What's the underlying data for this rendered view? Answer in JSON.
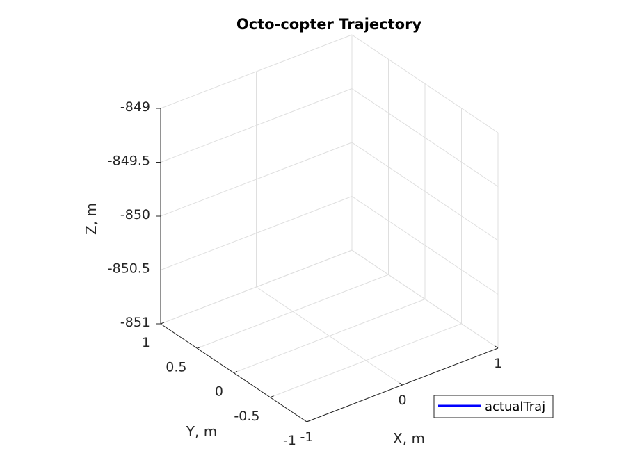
{
  "chart_data": {
    "type": "line",
    "projection": "3d",
    "title": "Octo-copter Trajectory",
    "xlabel": "X, m",
    "ylabel": "Y, m",
    "zlabel": "Z, m",
    "xlim": [
      -1,
      1
    ],
    "ylim": [
      -1,
      1
    ],
    "zlim": [
      -851,
      -849
    ],
    "xticks": [
      "-1",
      "0",
      "1"
    ],
    "yticks": [
      "-1",
      "-0.5",
      "0",
      "0.5",
      "1"
    ],
    "zticks": [
      "-851",
      "-850.5",
      "-850",
      "-849.5",
      "-849"
    ],
    "grid": true,
    "legend": {
      "location": "bottom-right",
      "entries": [
        "actualTraj"
      ]
    },
    "series": [
      {
        "name": "actualTraj",
        "color": "#0000ff",
        "x": [],
        "y": [],
        "z": []
      }
    ]
  }
}
